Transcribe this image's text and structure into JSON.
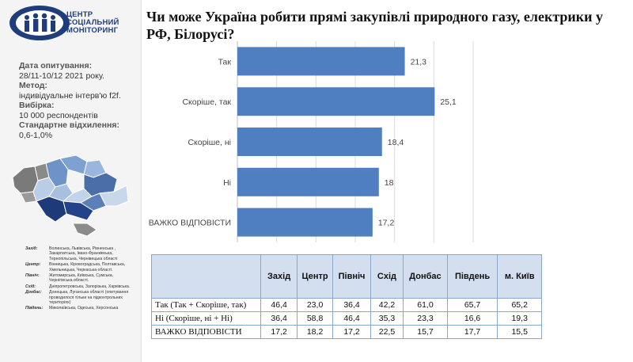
{
  "logo": {
    "line1": "ЦЕНТР",
    "line2": "СОЦІАЛЬНИЙ",
    "line3": "МОНІТОРИНГ",
    "brand_color": "#1f3d7a"
  },
  "survey": {
    "date_label": "Дата опитування:",
    "date_value": "28/11-10/12  2021  року.",
    "method_label": "Метод:",
    "method_value": "індивідуальне інтерв'ю f2f.",
    "sample_label": "Вибірка:",
    "sample_value": "10  000  респондентів",
    "stddev_label": "Стандартне відхилення:",
    "stddev_value": "0,6-1,0%"
  },
  "regions_legend": [
    {
      "key": "Захід:",
      "value": "Волинська, Львівська, Рівненська , Закарпатська, Івано-Франківська, Тернопільська, Чернівецька області"
    },
    {
      "key": "Центр:",
      "value": "Вінницька, Кіровоградська, Полтавська, Хмельницька, Черкаська області."
    },
    {
      "key": "Північ:",
      "value": "Житомирська, Київська, Сумська, Чернігівська області."
    },
    {
      "key": "Схід:",
      "value": "Дніпропетровська, Запорізька, Харківська."
    },
    {
      "key": "Донбас:",
      "value": "Донецька, Луганська області (опитування проводилося тільки на підконтрольних територіях)"
    },
    {
      "key": "Південь:",
      "value": "Миколаївська, Одеська, Херсонська"
    }
  ],
  "chart_data": {
    "type": "bar",
    "orientation": "horizontal",
    "title": "Чи може Україна робити прямі закупівлі природного газу, електрики у РФ, Білорусі?",
    "categories": [
      "Так",
      "Скоріше, так",
      "Скоріше, ні",
      "Ні",
      "ВАЖКО ВІДПОВІСТИ"
    ],
    "values": [
      21.3,
      25.1,
      18.4,
      18,
      17.2
    ],
    "value_labels": [
      "21,3",
      "25,1",
      "18,4",
      "18",
      "17,2"
    ],
    "xlim": [
      0,
      30
    ],
    "grid": true,
    "bar_color": "#4f7fc1"
  },
  "table": {
    "headers": [
      "",
      "Захід",
      "Центр",
      "Північ",
      "Схід",
      "Донбас",
      "Південь",
      "м. Київ"
    ],
    "rows": [
      {
        "label": "Так (Так + Скоріше,  так)",
        "values": [
          "46,4",
          "23,0",
          "36,4",
          "42,2",
          "61,0",
          "65,7",
          "65,2"
        ]
      },
      {
        "label": "Ні (Скоріше,  ні + Ні)",
        "values": [
          "36,4",
          "58,8",
          "46,4",
          "35,3",
          "23,3",
          "16,6",
          "19,3"
        ]
      },
      {
        "label": "ВАЖКО ВІДПОВІСТИ",
        "values": [
          "17,2",
          "18,2",
          "17,2",
          "22,5",
          "15,7",
          "17,7",
          "15,5"
        ]
      }
    ]
  }
}
